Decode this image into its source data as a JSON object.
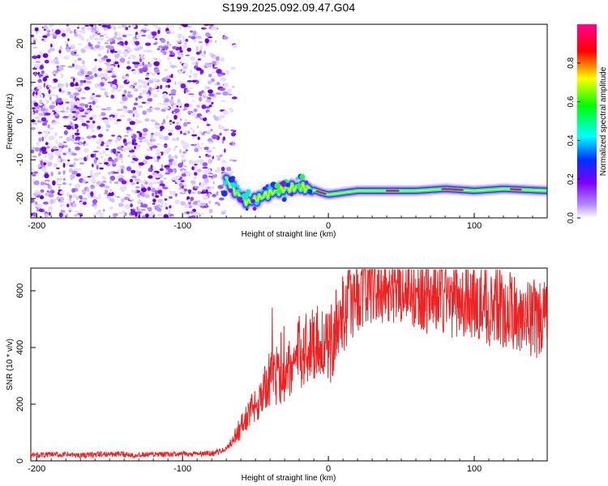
{
  "title": "S199.2025.092.09.47.G04",
  "chart_data": [
    {
      "type": "heatmap",
      "xlabel": "Height of straight line (km)",
      "ylabel": "Frequency (Hz)",
      "xlim": [
        -204,
        150
      ],
      "ylim": [
        -25,
        25
      ],
      "xticks": [
        -200,
        -100,
        0,
        100
      ],
      "yticks": [
        20,
        10,
        0,
        -10,
        -20
      ],
      "xtick_labels": [
        "-200",
        "-100",
        "0",
        "100"
      ],
      "ytick_labels": [
        "20",
        "10",
        "0",
        "-10",
        "-20"
      ],
      "colorbar": {
        "label": "Normalized spectral amplitude",
        "range": [
          0,
          1
        ],
        "ticks": [
          0.0,
          0.2,
          0.4,
          0.6,
          0.8
        ],
        "tick_labels": [
          "0.0",
          "0.2",
          "0.4",
          "0.6",
          "0.8"
        ],
        "colors": [
          "#ffffff",
          "#7f00ff",
          "#0000ff",
          "#00ffff",
          "#00ff00",
          "#ffff00",
          "#ff0000",
          "#ff0080"
        ]
      },
      "features": [
        {
          "name": "noise",
          "x_range": [
            -204,
            -72
          ],
          "y_range": [
            -25,
            25
          ],
          "level": 0.1
        },
        {
          "name": "tone",
          "points": [
            [
              -70,
              -15
            ],
            [
              -62,
              -19
            ],
            [
              -55,
              -21
            ],
            [
              -48,
              -20
            ],
            [
              -40,
              -18.5
            ],
            [
              -30,
              -17.5
            ],
            [
              -20,
              -17
            ],
            [
              -12,
              -17.5
            ],
            [
              -5,
              -18.5
            ],
            [
              0,
              -19
            ],
            [
              10,
              -18.5
            ],
            [
              20,
              -18
            ],
            [
              40,
              -18
            ],
            [
              60,
              -18
            ],
            [
              80,
              -17.5
            ],
            [
              100,
              -18
            ],
            [
              120,
              -17.5
            ],
            [
              150,
              -18
            ]
          ],
          "level": 0.95
        }
      ]
    },
    {
      "type": "line",
      "xlabel": "Height of straight line (km)",
      "ylabel": "SNR (10 * v/v)",
      "xlim": [
        -204,
        150
      ],
      "ylim": [
        0,
        680
      ],
      "xticks": [
        -200,
        -100,
        0,
        100
      ],
      "yticks": [
        0,
        200,
        400,
        600
      ],
      "xtick_labels": [
        "-200",
        "-100",
        "0",
        "100"
      ],
      "ytick_labels": [
        "0",
        "200",
        "400",
        "600"
      ],
      "color": "#ee2222",
      "series": [
        {
          "x": [
            -204,
            -190,
            -170,
            -150,
            -130,
            -110,
            -90,
            -80,
            -70,
            -65,
            -60,
            -55,
            -50,
            -45,
            -40,
            -35,
            -30,
            -25,
            -20,
            -15,
            -10,
            -5,
            0,
            5,
            10,
            15,
            20,
            25,
            30,
            40,
            50,
            60,
            70,
            80,
            90,
            100,
            110,
            120,
            130,
            140,
            150
          ],
          "y": [
            20,
            22,
            20,
            24,
            21,
            22,
            25,
            26,
            40,
            80,
            120,
            160,
            200,
            240,
            290,
            300,
            310,
            340,
            380,
            400,
            420,
            430,
            380,
            470,
            520,
            560,
            590,
            605,
            620,
            625,
            615,
            600,
            585,
            575,
            570,
            560,
            545,
            535,
            520,
            505,
            495
          ]
        }
      ]
    }
  ]
}
